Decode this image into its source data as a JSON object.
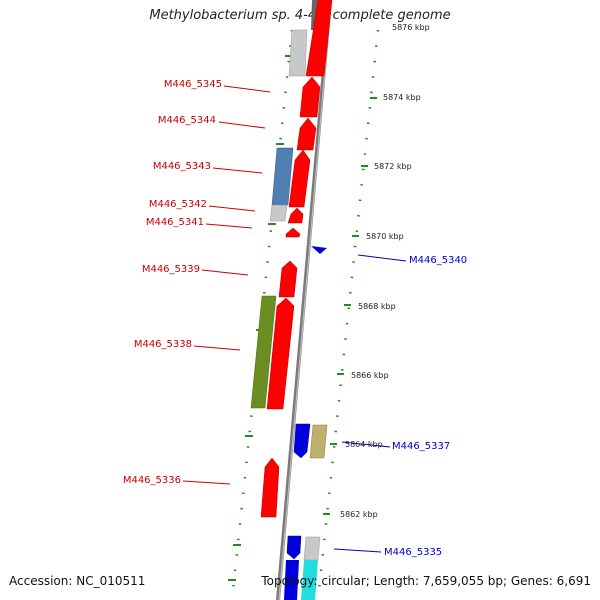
{
  "title": "Methylobacterium sp. 4-46, complete genome",
  "footer": {
    "accession": "Accession: NC_010511",
    "info": "Topology: circular; Length: 7,659,055 bp; Genes: 6,691"
  },
  "colors": {
    "forward_gene": "#ff0000",
    "reverse_gene": "#0000dd",
    "backbone": "#888888",
    "ticks": "#228b22",
    "label_forward": "#cc0000",
    "label_reverse": "#0000cc",
    "steelblue_feature": "#4f7fb0",
    "olive_feature": "#6b8e23",
    "khaki_feature": "#c0b070",
    "gray_feature": "#c8c8c8",
    "cyan_feature": "#22dddd"
  },
  "scale_labels": [
    "5876 kbp",
    "5874 kbp",
    "5872 kbp",
    "5870 kbp",
    "5868 kbp",
    "5866 kbp",
    "5864 kbp",
    "5862 kbp"
  ],
  "gene_labels": [
    {
      "text": "M446_5345",
      "strand": "forward"
    },
    {
      "text": "M446_5344",
      "strand": "forward"
    },
    {
      "text": "M446_5343",
      "strand": "forward"
    },
    {
      "text": "M446_5342",
      "strand": "forward"
    },
    {
      "text": "M446_5341",
      "strand": "forward"
    },
    {
      "text": "M446_5340",
      "strand": "reverse"
    },
    {
      "text": "M446_5339",
      "strand": "forward"
    },
    {
      "text": "M446_5338",
      "strand": "forward"
    },
    {
      "text": "M446_5337",
      "strand": "reverse"
    },
    {
      "text": "M446_5336",
      "strand": "forward"
    },
    {
      "text": "M446_5335",
      "strand": "reverse"
    }
  ]
}
